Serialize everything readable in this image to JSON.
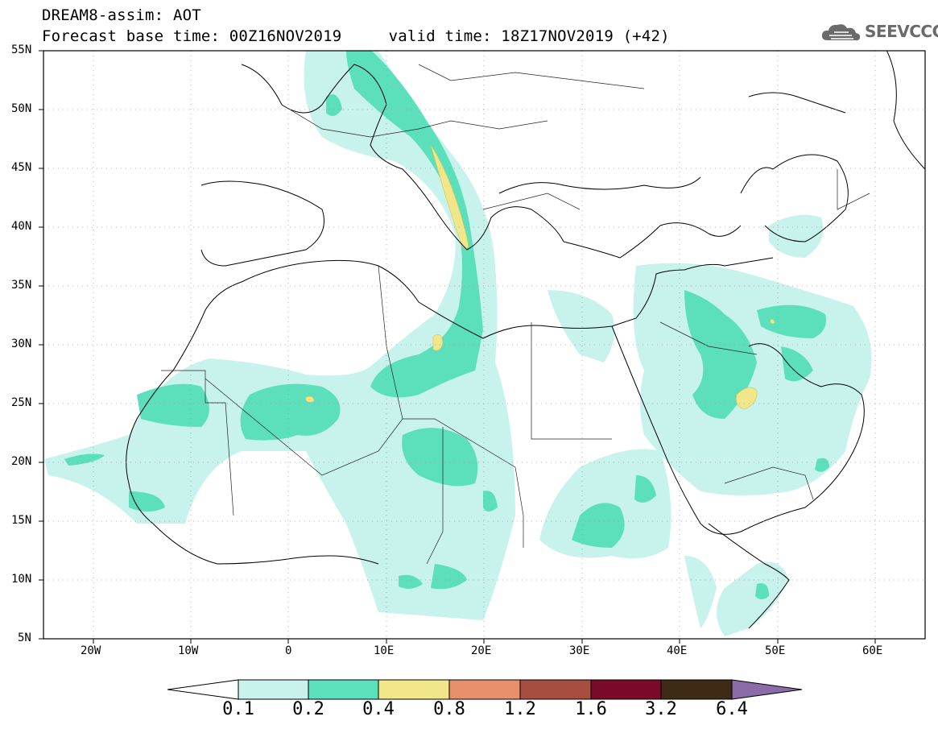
{
  "header": {
    "line1": "DREAM8-assim: AOT",
    "line2": "Forecast base time: 00Z16NOV2019     valid time: 18Z17NOV2019 (+42)"
  },
  "logo": {
    "text": "SEEVCCC",
    "icon": "cloud-logo-icon"
  },
  "map": {
    "lon_range": [
      -25,
      65
    ],
    "lat_range": [
      5,
      55
    ],
    "x_ticks": [
      "20W",
      "10W",
      "0",
      "10E",
      "20E",
      "30E",
      "40E",
      "50E",
      "60E"
    ],
    "y_ticks": [
      "5N",
      "10N",
      "15N",
      "20N",
      "25N",
      "30N",
      "35N",
      "40N",
      "45N",
      "50N",
      "55N"
    ],
    "grid": true
  },
  "colorbar": {
    "labels": [
      "0.1",
      "0.2",
      "0.4",
      "0.8",
      "1.2",
      "1.6",
      "3.2",
      "6.4"
    ],
    "colors": [
      "#ffffff",
      "#c8f2ec",
      "#5ce0bc",
      "#f2e68a",
      "#e8906c",
      "#a84e40",
      "#7a0a2a",
      "#3e2a16",
      "#8c6ca8"
    ]
  }
}
